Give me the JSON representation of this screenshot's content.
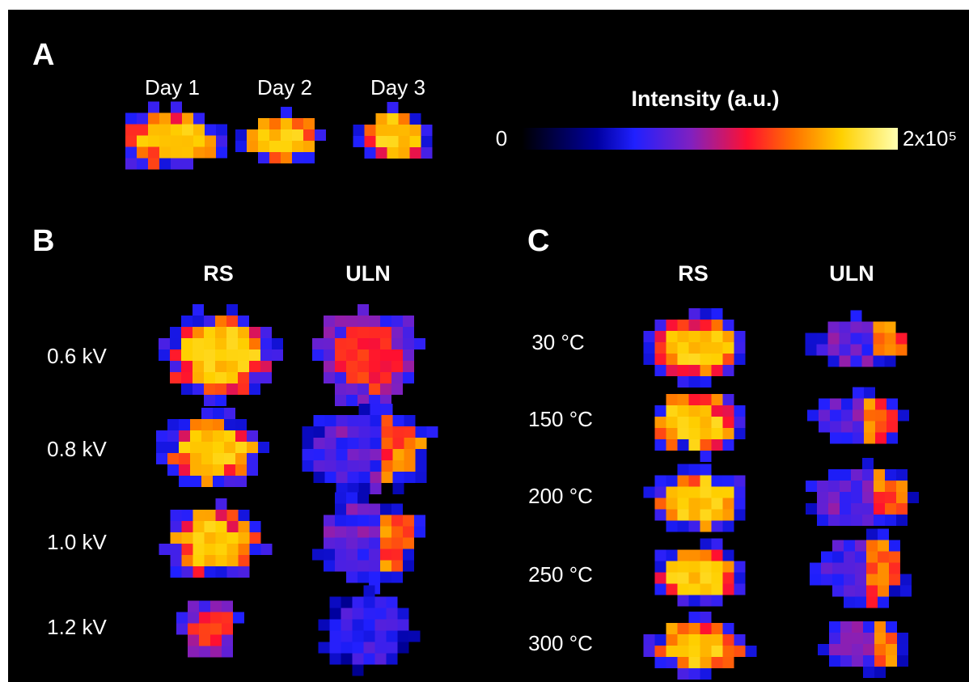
{
  "panel_a": {
    "label": "A",
    "days": [
      "Day 1",
      "Day 2",
      "Day 3"
    ],
    "colorbar": {
      "title": "Intensity (a.u.)",
      "min_label": "0",
      "max_label": "2x10⁵"
    }
  },
  "panel_b": {
    "label": "B",
    "columns": [
      "RS",
      "ULN"
    ],
    "rows": [
      "0.6 kV",
      "0.8 kV",
      "1.0 kV",
      "1.2 kV"
    ]
  },
  "panel_c": {
    "label": "C",
    "columns": [
      "RS",
      "ULN"
    ],
    "rows": [
      "30 °C",
      "150 °C",
      "200 °C",
      "250 °C",
      "300 °C"
    ]
  }
}
